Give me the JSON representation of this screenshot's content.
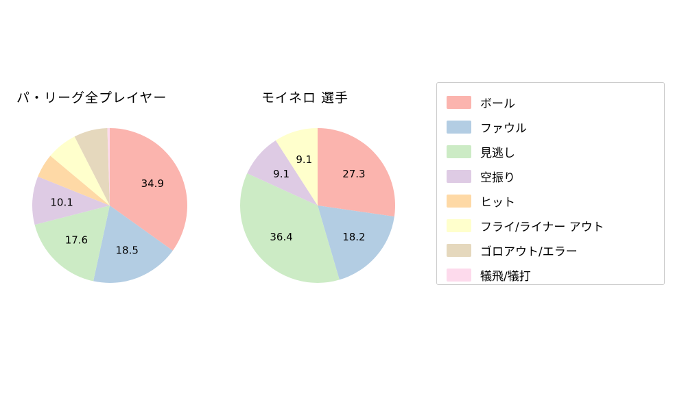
{
  "chart_data": [
    {
      "type": "pie",
      "title": "パ・リーグ全プレイヤー",
      "start_angle_deg": 90,
      "direction": "clockwise",
      "slices": [
        {
          "name": "ボール",
          "value": 34.9,
          "label": "34.9",
          "color": "#fbb4ae"
        },
        {
          "name": "ファウル",
          "value": 18.5,
          "label": "18.5",
          "color": "#b3cde3"
        },
        {
          "name": "見逃し",
          "value": 17.6,
          "label": "17.6",
          "color": "#ccebc5"
        },
        {
          "name": "空振り",
          "value": 10.1,
          "label": "10.1",
          "color": "#decbe4"
        },
        {
          "name": "ヒット",
          "value": 5.0,
          "label": "",
          "color": "#fed9a6"
        },
        {
          "name": "フライ/ライナー アウト",
          "value": 6.4,
          "label": "",
          "color": "#ffffcc"
        },
        {
          "name": "ゴロアウト/エラー",
          "value": 7.0,
          "label": "",
          "color": "#e5d8bd"
        },
        {
          "name": "犠飛/犠打",
          "value": 0.5,
          "label": "",
          "color": "#fddaec"
        }
      ]
    },
    {
      "type": "pie",
      "title": "モイネロ 選手",
      "start_angle_deg": 90,
      "direction": "clockwise",
      "slices": [
        {
          "name": "ボール",
          "value": 27.3,
          "label": "27.3",
          "color": "#fbb4ae"
        },
        {
          "name": "ファウル",
          "value": 18.2,
          "label": "18.2",
          "color": "#b3cde3"
        },
        {
          "name": "見逃し",
          "value": 36.4,
          "label": "36.4",
          "color": "#ccebc5"
        },
        {
          "name": "空振り",
          "value": 9.1,
          "label": "9.1",
          "color": "#decbe4"
        },
        {
          "name": "フライ/ライナー アウト",
          "value": 9.1,
          "label": "9.1",
          "color": "#ffffcc"
        }
      ]
    }
  ],
  "legend": {
    "items": [
      {
        "label": "ボール",
        "color": "#fbb4ae"
      },
      {
        "label": "ファウル",
        "color": "#b3cde3"
      },
      {
        "label": "見逃し",
        "color": "#ccebc5"
      },
      {
        "label": "空振り",
        "color": "#decbe4"
      },
      {
        "label": "ヒット",
        "color": "#fed9a6"
      },
      {
        "label": "フライ/ライナー アウト",
        "color": "#ffffcc"
      },
      {
        "label": "ゴロアウト/エラー",
        "color": "#e5d8bd"
      },
      {
        "label": "犠飛/犠打",
        "color": "#fddaec"
      }
    ]
  }
}
